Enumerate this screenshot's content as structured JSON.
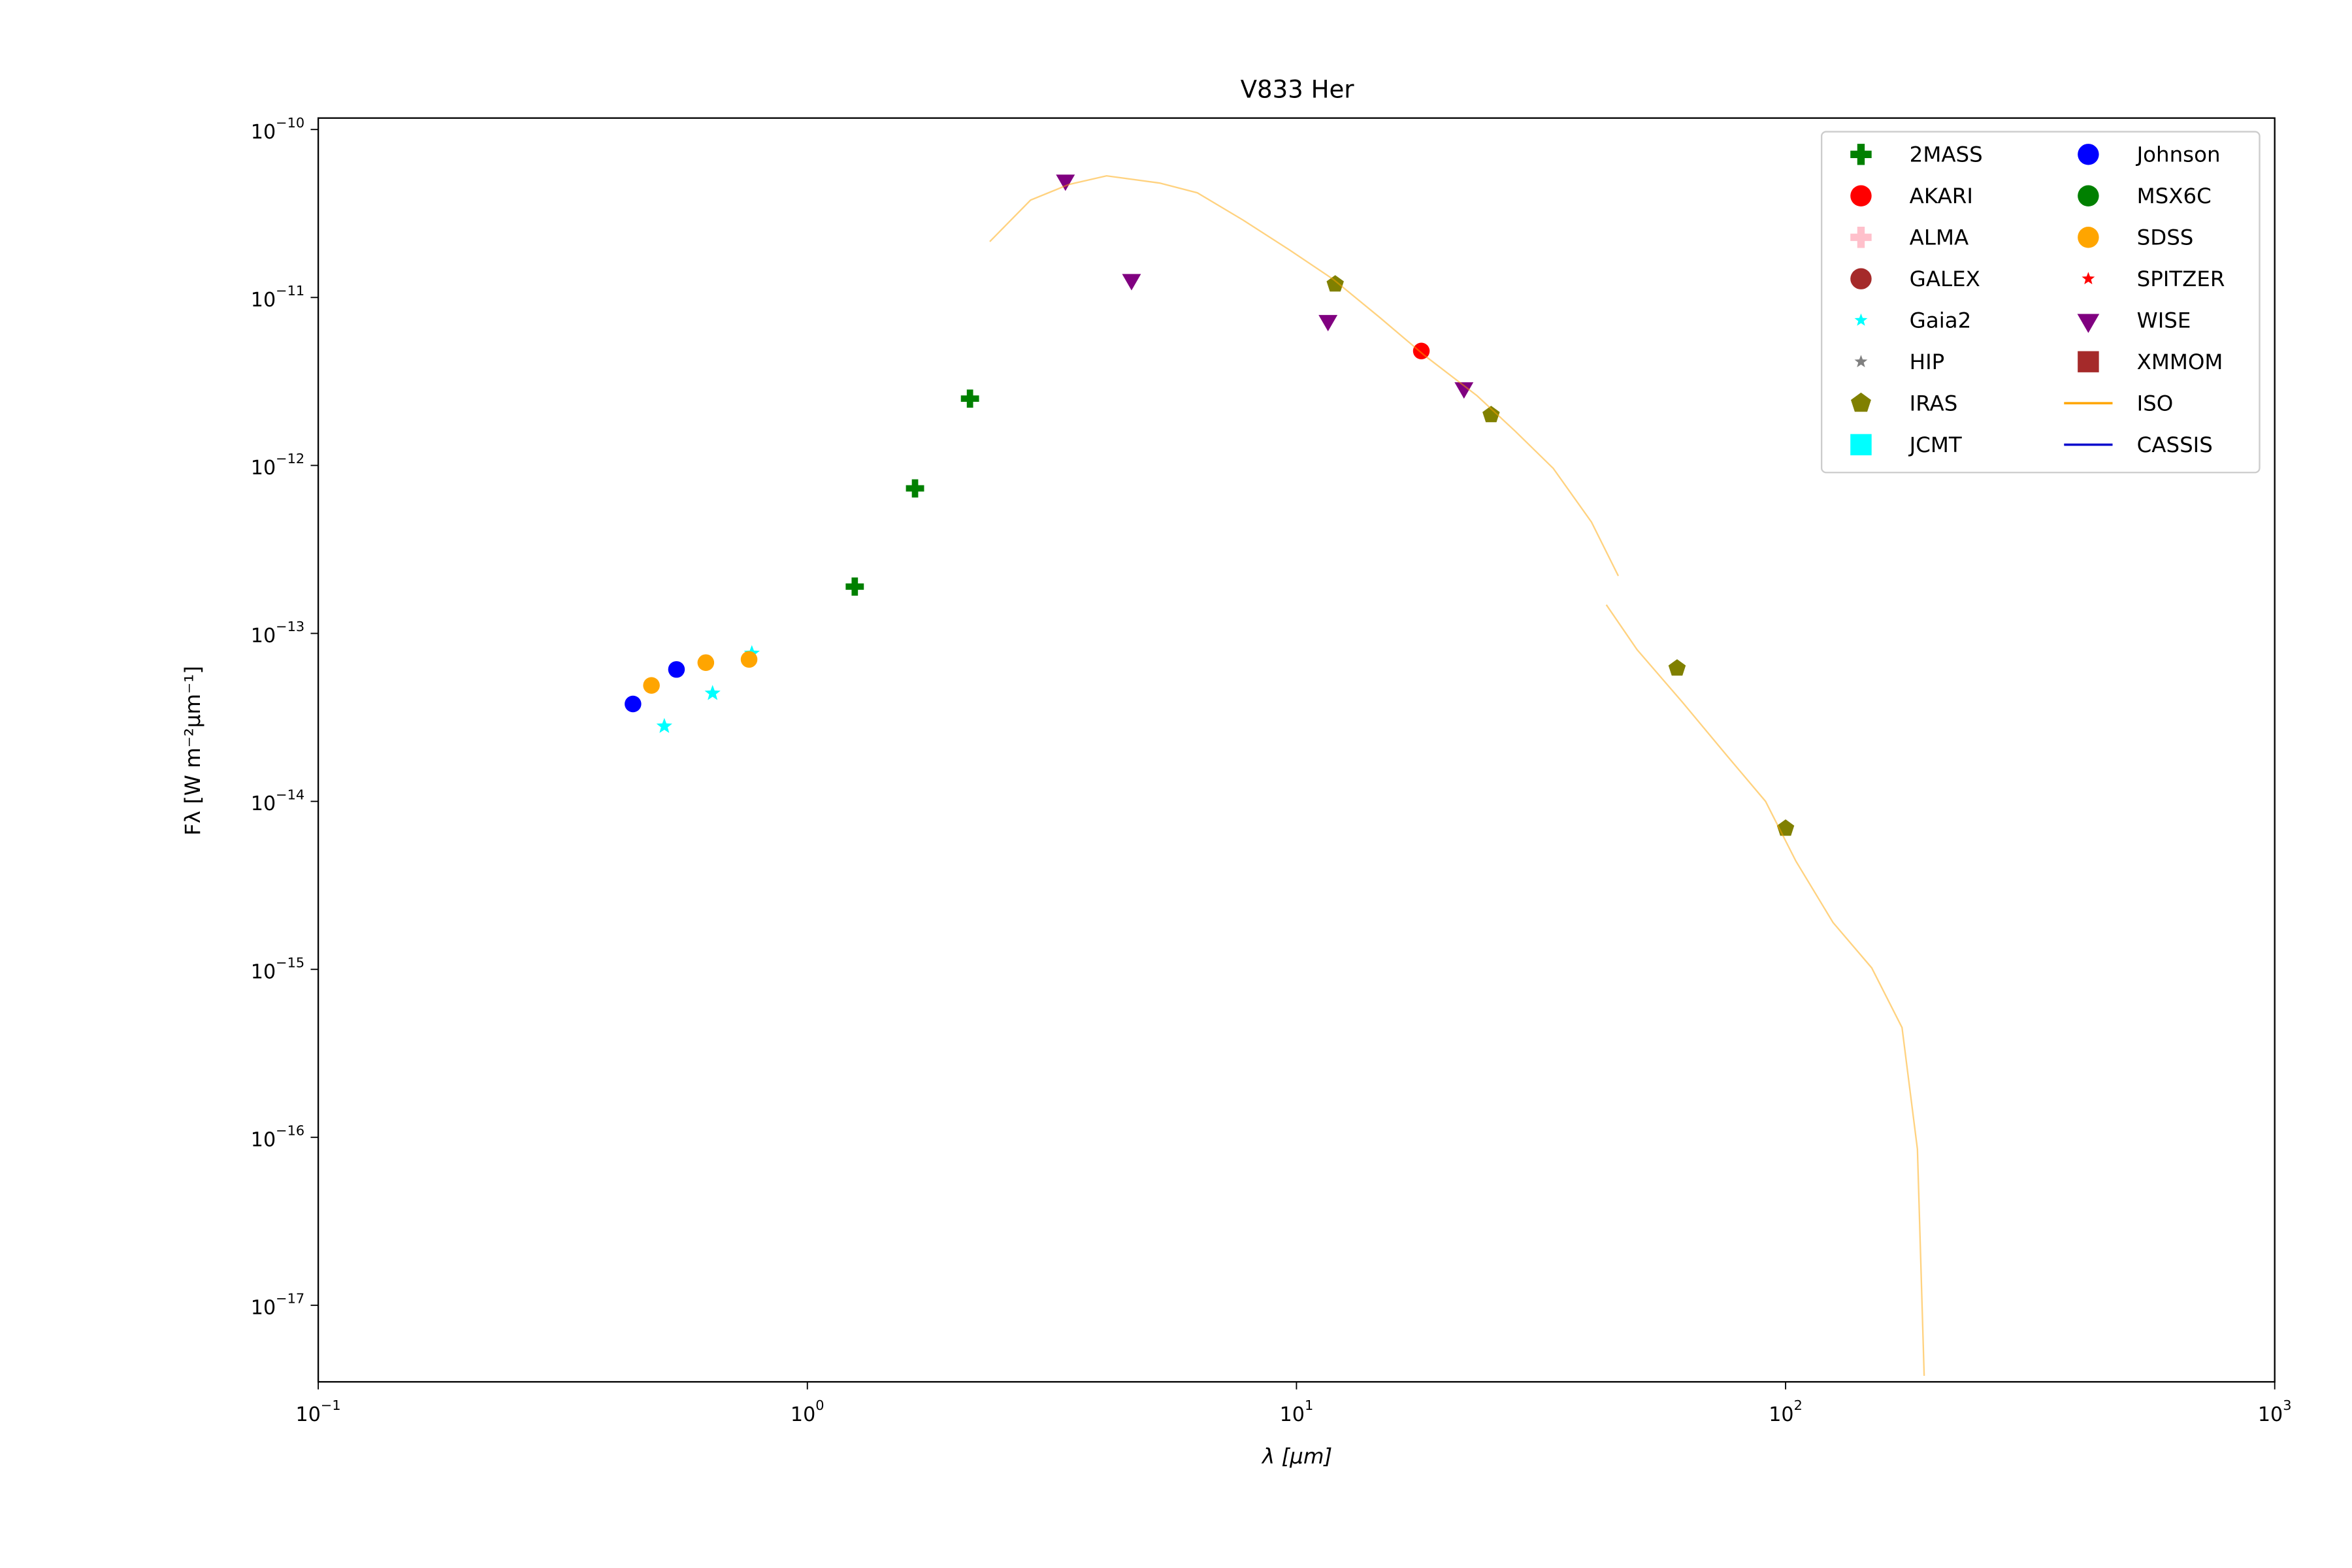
{
  "chart_data": {
    "type": "scatter",
    "title": "V833 Her",
    "x_label": "λ [μm]",
    "y_label": "Fλ [W m⁻²μm⁻¹]",
    "x_scale": "log",
    "y_scale": "log",
    "grid": false,
    "legend": "upper right",
    "legend_columns": 2,
    "xlim": [
      0.1,
      1000
    ],
    "ylim": [
      3.5e-18,
      1.17e-10
    ],
    "xticks": [
      {
        "value": 0.1,
        "label": "10",
        "exponent": "−1"
      },
      {
        "value": 1,
        "label": "10",
        "exponent": "0"
      },
      {
        "value": 10,
        "label": "10",
        "exponent": "1"
      },
      {
        "value": 100,
        "label": "10",
        "exponent": "2"
      },
      {
        "value": 1000,
        "label": "10",
        "exponent": "3"
      }
    ],
    "yticks": [
      {
        "value": 1e-10,
        "label": "10",
        "exponent": "−10"
      },
      {
        "value": 1e-11,
        "label": "10",
        "exponent": "−11"
      },
      {
        "value": 1e-12,
        "label": "10",
        "exponent": "−12"
      },
      {
        "value": 1e-13,
        "label": "10",
        "exponent": "−13"
      },
      {
        "value": 1e-14,
        "label": "10",
        "exponent": "−14"
      },
      {
        "value": 1e-15,
        "label": "10",
        "exponent": "−15"
      },
      {
        "value": 1e-16,
        "label": "10",
        "exponent": "−16"
      },
      {
        "value": 1e-17,
        "label": "10",
        "exponent": "−17"
      }
    ],
    "series": [
      {
        "name": "2MASS",
        "color": "#008000",
        "marker": "plus",
        "x": [
          1.25,
          1.66,
          2.15
        ],
        "values": [
          1.9e-13,
          7.3e-13,
          2.5e-12
        ]
      },
      {
        "name": "AKARI",
        "color": "#ff0000",
        "marker": "circle",
        "x": [
          18
        ],
        "values": [
          4.8e-12
        ]
      },
      {
        "name": "ALMA",
        "color": "#ffc0cb",
        "marker": "plus",
        "x": [],
        "values": []
      },
      {
        "name": "GALEX",
        "color": "#a52a2a",
        "marker": "circle",
        "x": [],
        "values": []
      },
      {
        "name": "Gaia2",
        "color": "#00ffff",
        "marker": "star",
        "x": [
          0.51,
          0.64,
          0.77
        ],
        "values": [
          2.8e-14,
          4.4e-14,
          7.6e-14
        ]
      },
      {
        "name": "HIP",
        "color": "#808080",
        "marker": "star",
        "x": [],
        "values": []
      },
      {
        "name": "IRAS",
        "color": "#808000",
        "marker": "pentagon",
        "x": [
          12,
          25,
          60,
          100
        ],
        "values": [
          1.2e-11,
          2e-12,
          6.2e-14,
          6.9e-15
        ]
      },
      {
        "name": "JCMT",
        "color": "#00ffff",
        "marker": "square",
        "x": [],
        "values": []
      },
      {
        "name": "Johnson",
        "color": "#0000ff",
        "marker": "circle",
        "x": [
          0.44,
          0.54
        ],
        "values": [
          3.8e-14,
          6.1e-14
        ]
      },
      {
        "name": "MSX6C",
        "color": "#008000",
        "marker": "circle",
        "x": [],
        "values": []
      },
      {
        "name": "SDSS",
        "color": "#ffa500",
        "marker": "circle",
        "x": [
          0.48,
          0.62,
          0.76
        ],
        "values": [
          4.9e-14,
          6.7e-14,
          7e-14
        ]
      },
      {
        "name": "SPITZER",
        "color": "#ff0000",
        "marker": "star",
        "x": [],
        "values": []
      },
      {
        "name": "WISE",
        "color": "#800080",
        "marker": "triangle_down",
        "x": [
          3.37,
          4.6,
          11.6,
          22
        ],
        "values": [
          5e-11,
          1.28e-11,
          7.3e-12,
          2.9e-12
        ]
      },
      {
        "name": "XMMOM",
        "color": "#a52a2a",
        "marker": "square",
        "x": [],
        "values": []
      },
      {
        "name": "ISO",
        "color": "#ffa500",
        "marker": "line",
        "alpha": 0.5,
        "x": [
          2.36,
          2.86,
          3.42,
          4.09,
          5.25,
          6.27,
          7.76,
          9.62,
          11.9,
          14.8,
          18.3,
          23.4,
          28,
          33.5,
          40.1,
          45.5,
          null,
          43,
          49.7,
          61.5,
          76,
          91,
          105,
          125,
          150,
          173,
          186,
          192
        ],
        "values": [
          2.15e-11,
          3.8e-11,
          4.7e-11,
          5.3e-11,
          4.8e-11,
          4.2e-11,
          2.9e-11,
          1.94e-11,
          1.28e-11,
          7.6e-12,
          4.5e-12,
          2.6e-12,
          1.6e-12,
          9.6e-13,
          4.6e-13,
          2.2e-13,
          null,
          1.48e-13,
          8e-14,
          3.9e-14,
          1.86e-14,
          1e-14,
          4.4e-15,
          1.9e-15,
          1.02e-15,
          4.5e-16,
          8.5e-17,
          3.8e-18
        ]
      },
      {
        "name": "CASSIS",
        "color": "#0000cd",
        "marker": "line",
        "x": [],
        "values": []
      }
    ]
  }
}
